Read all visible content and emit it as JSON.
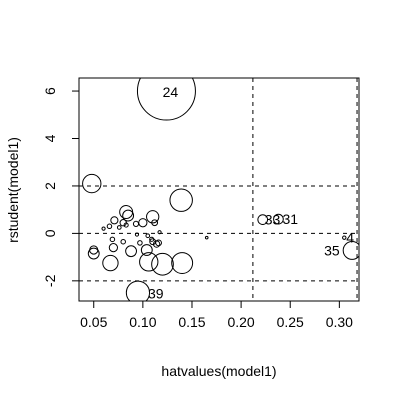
{
  "chart_data": {
    "type": "scatter",
    "title": "",
    "xlabel": "hatvalues(model1)",
    "ylabel": "rstudent(model1)",
    "xlim": [
      0.035,
      0.32
    ],
    "ylim": [
      -2.85,
      6.55
    ],
    "x_ticks": [
      0.05,
      0.1,
      0.15,
      0.2,
      0.25,
      0.3
    ],
    "x_tick_labels": [
      "0.05",
      "0.10",
      "0.15",
      "0.20",
      "0.25",
      "0.30"
    ],
    "y_ticks": [
      -2,
      0,
      2,
      4,
      6
    ],
    "y_tick_labels": [
      "-2",
      "0",
      "2",
      "4",
      "6"
    ],
    "reference_lines": {
      "horizontal": [
        -2,
        0,
        2
      ],
      "vertical": [
        0.212,
        0.318
      ],
      "style": "dashed"
    },
    "marker": "open circle, area proportional to Cook's distance",
    "points": [
      {
        "x": 0.124,
        "y": 6.0,
        "cook": 1.0,
        "label": "24"
      },
      {
        "x": 0.095,
        "y": -2.5,
        "cook": 0.16,
        "label": "39"
      },
      {
        "x": 0.222,
        "y": 0.58,
        "cook": 0.028,
        "label": "33"
      },
      {
        "x": 0.238,
        "y": 0.6,
        "cook": 0.028,
        "label": "31"
      },
      {
        "x": 0.305,
        "y": -0.18,
        "cook": 0.0035,
        "label": "4"
      },
      {
        "x": 0.313,
        "y": -0.72,
        "cook": 0.095,
        "label": "35"
      },
      {
        "x": 0.048,
        "y": 2.1,
        "cook": 0.1,
        "label": ""
      },
      {
        "x": 0.139,
        "y": 1.4,
        "cook": 0.15,
        "label": ""
      },
      {
        "x": 0.14,
        "y": -1.25,
        "cook": 0.13,
        "label": ""
      },
      {
        "x": 0.12,
        "y": -1.3,
        "cook": 0.14,
        "label": ""
      },
      {
        "x": 0.106,
        "y": -1.2,
        "cook": 0.1,
        "label": ""
      },
      {
        "x": 0.067,
        "y": -1.25,
        "cook": 0.07,
        "label": ""
      },
      {
        "x": 0.05,
        "y": -0.85,
        "cook": 0.035,
        "label": ""
      },
      {
        "x": 0.05,
        "y": -0.7,
        "cook": 0.02,
        "label": ""
      },
      {
        "x": 0.083,
        "y": 0.9,
        "cook": 0.05,
        "label": ""
      },
      {
        "x": 0.085,
        "y": 0.75,
        "cook": 0.035,
        "label": ""
      },
      {
        "x": 0.11,
        "y": 0.7,
        "cook": 0.045,
        "label": ""
      },
      {
        "x": 0.104,
        "y": -0.7,
        "cook": 0.035,
        "label": ""
      },
      {
        "x": 0.088,
        "y": -0.75,
        "cook": 0.035,
        "label": ""
      },
      {
        "x": 0.07,
        "y": -0.6,
        "cook": 0.02,
        "label": ""
      },
      {
        "x": 0.071,
        "y": 0.55,
        "cook": 0.015,
        "label": ""
      },
      {
        "x": 0.08,
        "y": 0.45,
        "cook": 0.012,
        "label": ""
      },
      {
        "x": 0.093,
        "y": 0.4,
        "cook": 0.008,
        "label": ""
      },
      {
        "x": 0.1,
        "y": 0.45,
        "cook": 0.02,
        "label": ""
      },
      {
        "x": 0.112,
        "y": 0.45,
        "cook": 0.01,
        "label": ""
      },
      {
        "x": 0.066,
        "y": 0.3,
        "cook": 0.006,
        "label": ""
      },
      {
        "x": 0.076,
        "y": 0.25,
        "cook": 0.004,
        "label": ""
      },
      {
        "x": 0.083,
        "y": 0.35,
        "cook": 0.005,
        "label": ""
      },
      {
        "x": 0.06,
        "y": 0.2,
        "cook": 0.003,
        "label": ""
      },
      {
        "x": 0.069,
        "y": -0.25,
        "cook": 0.006,
        "label": ""
      },
      {
        "x": 0.08,
        "y": -0.35,
        "cook": 0.006,
        "label": ""
      },
      {
        "x": 0.094,
        "y": -0.05,
        "cook": 0.003,
        "label": ""
      },
      {
        "x": 0.097,
        "y": -0.4,
        "cook": 0.006,
        "label": ""
      },
      {
        "x": 0.11,
        "y": -0.35,
        "cook": 0.01,
        "label": ""
      },
      {
        "x": 0.114,
        "y": -0.45,
        "cook": 0.012,
        "label": ""
      },
      {
        "x": 0.116,
        "y": -0.4,
        "cook": 0.01,
        "label": ""
      },
      {
        "x": 0.109,
        "y": -0.25,
        "cook": 0.005,
        "label": ""
      },
      {
        "x": 0.105,
        "y": -0.1,
        "cook": 0.004,
        "label": ""
      },
      {
        "x": 0.117,
        "y": 0.05,
        "cook": 0.003,
        "label": ""
      },
      {
        "x": 0.165,
        "y": -0.18,
        "cook": 0.002,
        "label": ""
      }
    ]
  }
}
